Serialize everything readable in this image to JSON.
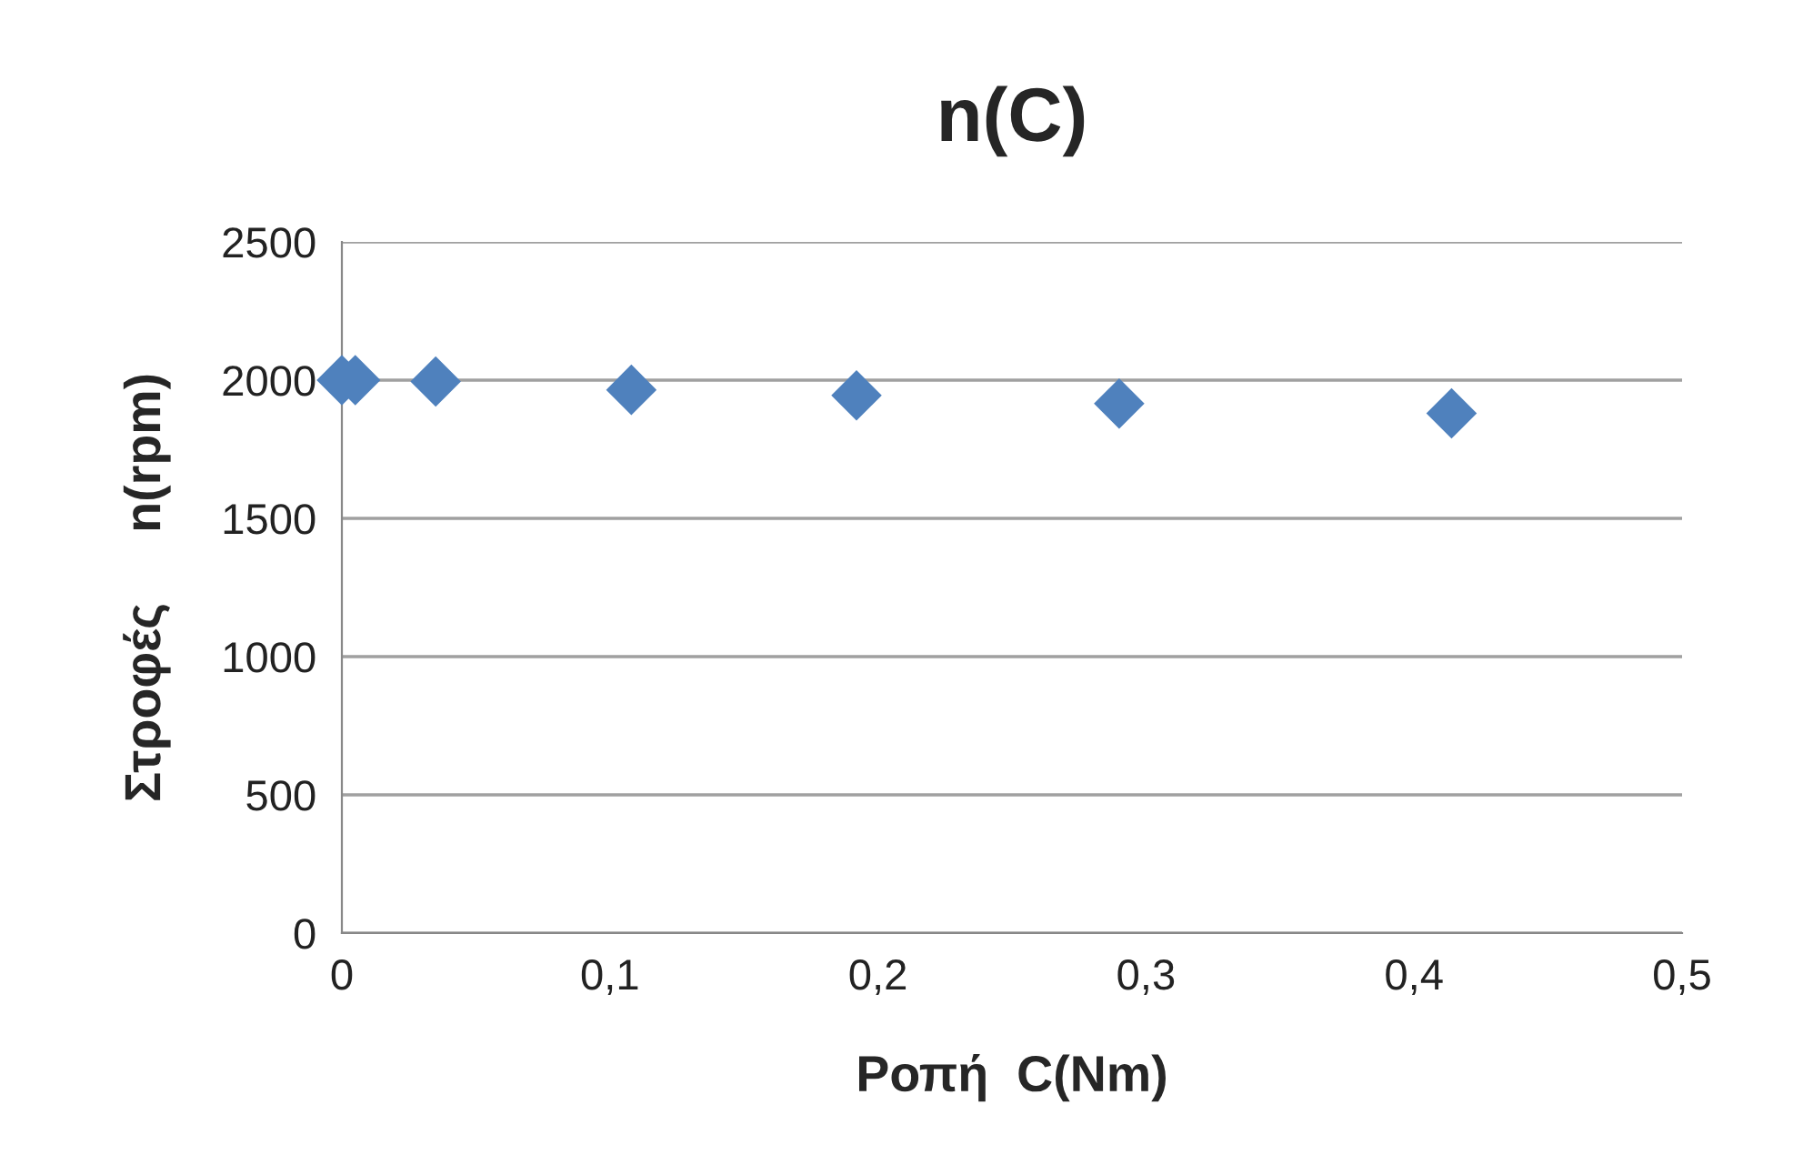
{
  "chart_data": {
    "type": "scatter",
    "title": "n(C)",
    "xlabel": "Ροπή  C(Nm)",
    "ylabel": "Στροφές     n(rpm)",
    "x": [
      0,
      0.005,
      0.035,
      0.108,
      0.192,
      0.29,
      0.414
    ],
    "series": [
      {
        "color": "#4f81bd",
        "values": [
          2000,
          2000,
          1995,
          1965,
          1945,
          1915,
          1880
        ]
      }
    ],
    "marker": "diamond",
    "grid": "y",
    "xlim": [
      0,
      0.5
    ],
    "xticks": [
      0,
      {
        "value": 0.1,
        "label": "0,1"
      },
      {
        "value": 0.2,
        "label": "0,2"
      },
      {
        "value": 0.3,
        "label": "0,3"
      },
      {
        "value": 0.4,
        "label": "0,4"
      },
      {
        "value": 0.5,
        "label": "0,5"
      }
    ],
    "ylim": [
      0,
      2500
    ],
    "yticks": [
      0,
      500,
      1000,
      1500,
      2000,
      2500
    ]
  }
}
